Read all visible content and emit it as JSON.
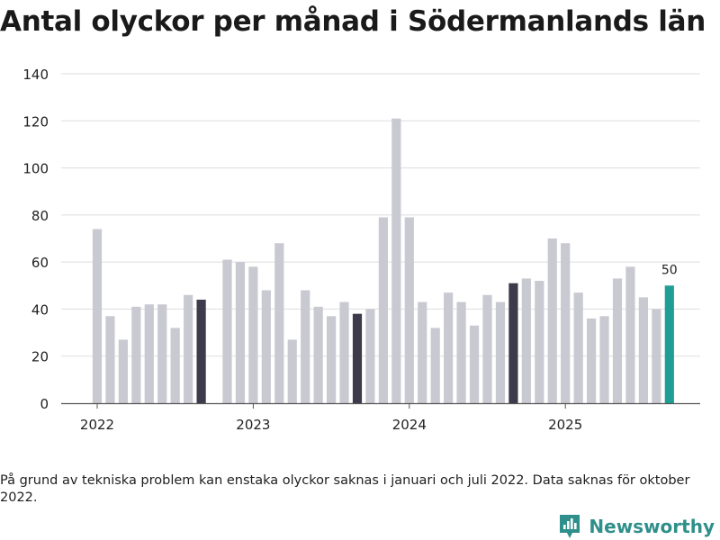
{
  "chart_data": {
    "type": "bar",
    "title": "Antal olyckor per månad i Södermanlands län",
    "xlabel": "",
    "ylabel": "",
    "ylim": [
      0,
      140
    ],
    "yticks": [
      0,
      20,
      40,
      60,
      80,
      100,
      120,
      140
    ],
    "xticks": [
      {
        "label": "2022",
        "index": 0
      },
      {
        "label": "2023",
        "index": 12
      },
      {
        "label": "2024",
        "index": 24
      },
      {
        "label": "2025",
        "index": 36
      }
    ],
    "categories": [
      "2022-01",
      "2022-02",
      "2022-03",
      "2022-04",
      "2022-05",
      "2022-06",
      "2022-07",
      "2022-08",
      "2022-09",
      "2022-10",
      "2022-11",
      "2022-12",
      "2023-01",
      "2023-02",
      "2023-03",
      "2023-04",
      "2023-05",
      "2023-06",
      "2023-07",
      "2023-08",
      "2023-09",
      "2023-10",
      "2023-11",
      "2023-12",
      "2024-01",
      "2024-02",
      "2024-03",
      "2024-04",
      "2024-05",
      "2024-06",
      "2024-07",
      "2024-08",
      "2024-09",
      "2024-10",
      "2024-11",
      "2024-12",
      "2025-01",
      "2025-02",
      "2025-03",
      "2025-04",
      "2025-05",
      "2025-06",
      "2025-07",
      "2025-08",
      "2025-09"
    ],
    "values": [
      74,
      37,
      27,
      41,
      42,
      42,
      32,
      46,
      44,
      null,
      61,
      60,
      58,
      48,
      68,
      27,
      48,
      41,
      37,
      43,
      38,
      40,
      79,
      121,
      79,
      43,
      32,
      47,
      43,
      33,
      46,
      43,
      51,
      53,
      52,
      70,
      68,
      47,
      36,
      37,
      53,
      58,
      45,
      40,
      50
    ],
    "highlight_dark": [
      "2022-09",
      "2023-09",
      "2024-09"
    ],
    "highlight_current": "2025-09",
    "data_labels": [
      {
        "category": "2025-09",
        "text": "50"
      }
    ],
    "colors": {
      "default": "#c9c9d2",
      "dark": "#3d3b4b",
      "current": "#1e9e94",
      "grid": "#dedede",
      "axis": "#555555"
    }
  },
  "footnote": "På grund av tekniska problem kan enstaka olyckor saknas i januari och juli 2022. Data saknas för oktober 2022.",
  "brand": {
    "name": "Newsworthy",
    "icon": "newsworthy-logo-icon",
    "color": "#2f8f8a"
  }
}
